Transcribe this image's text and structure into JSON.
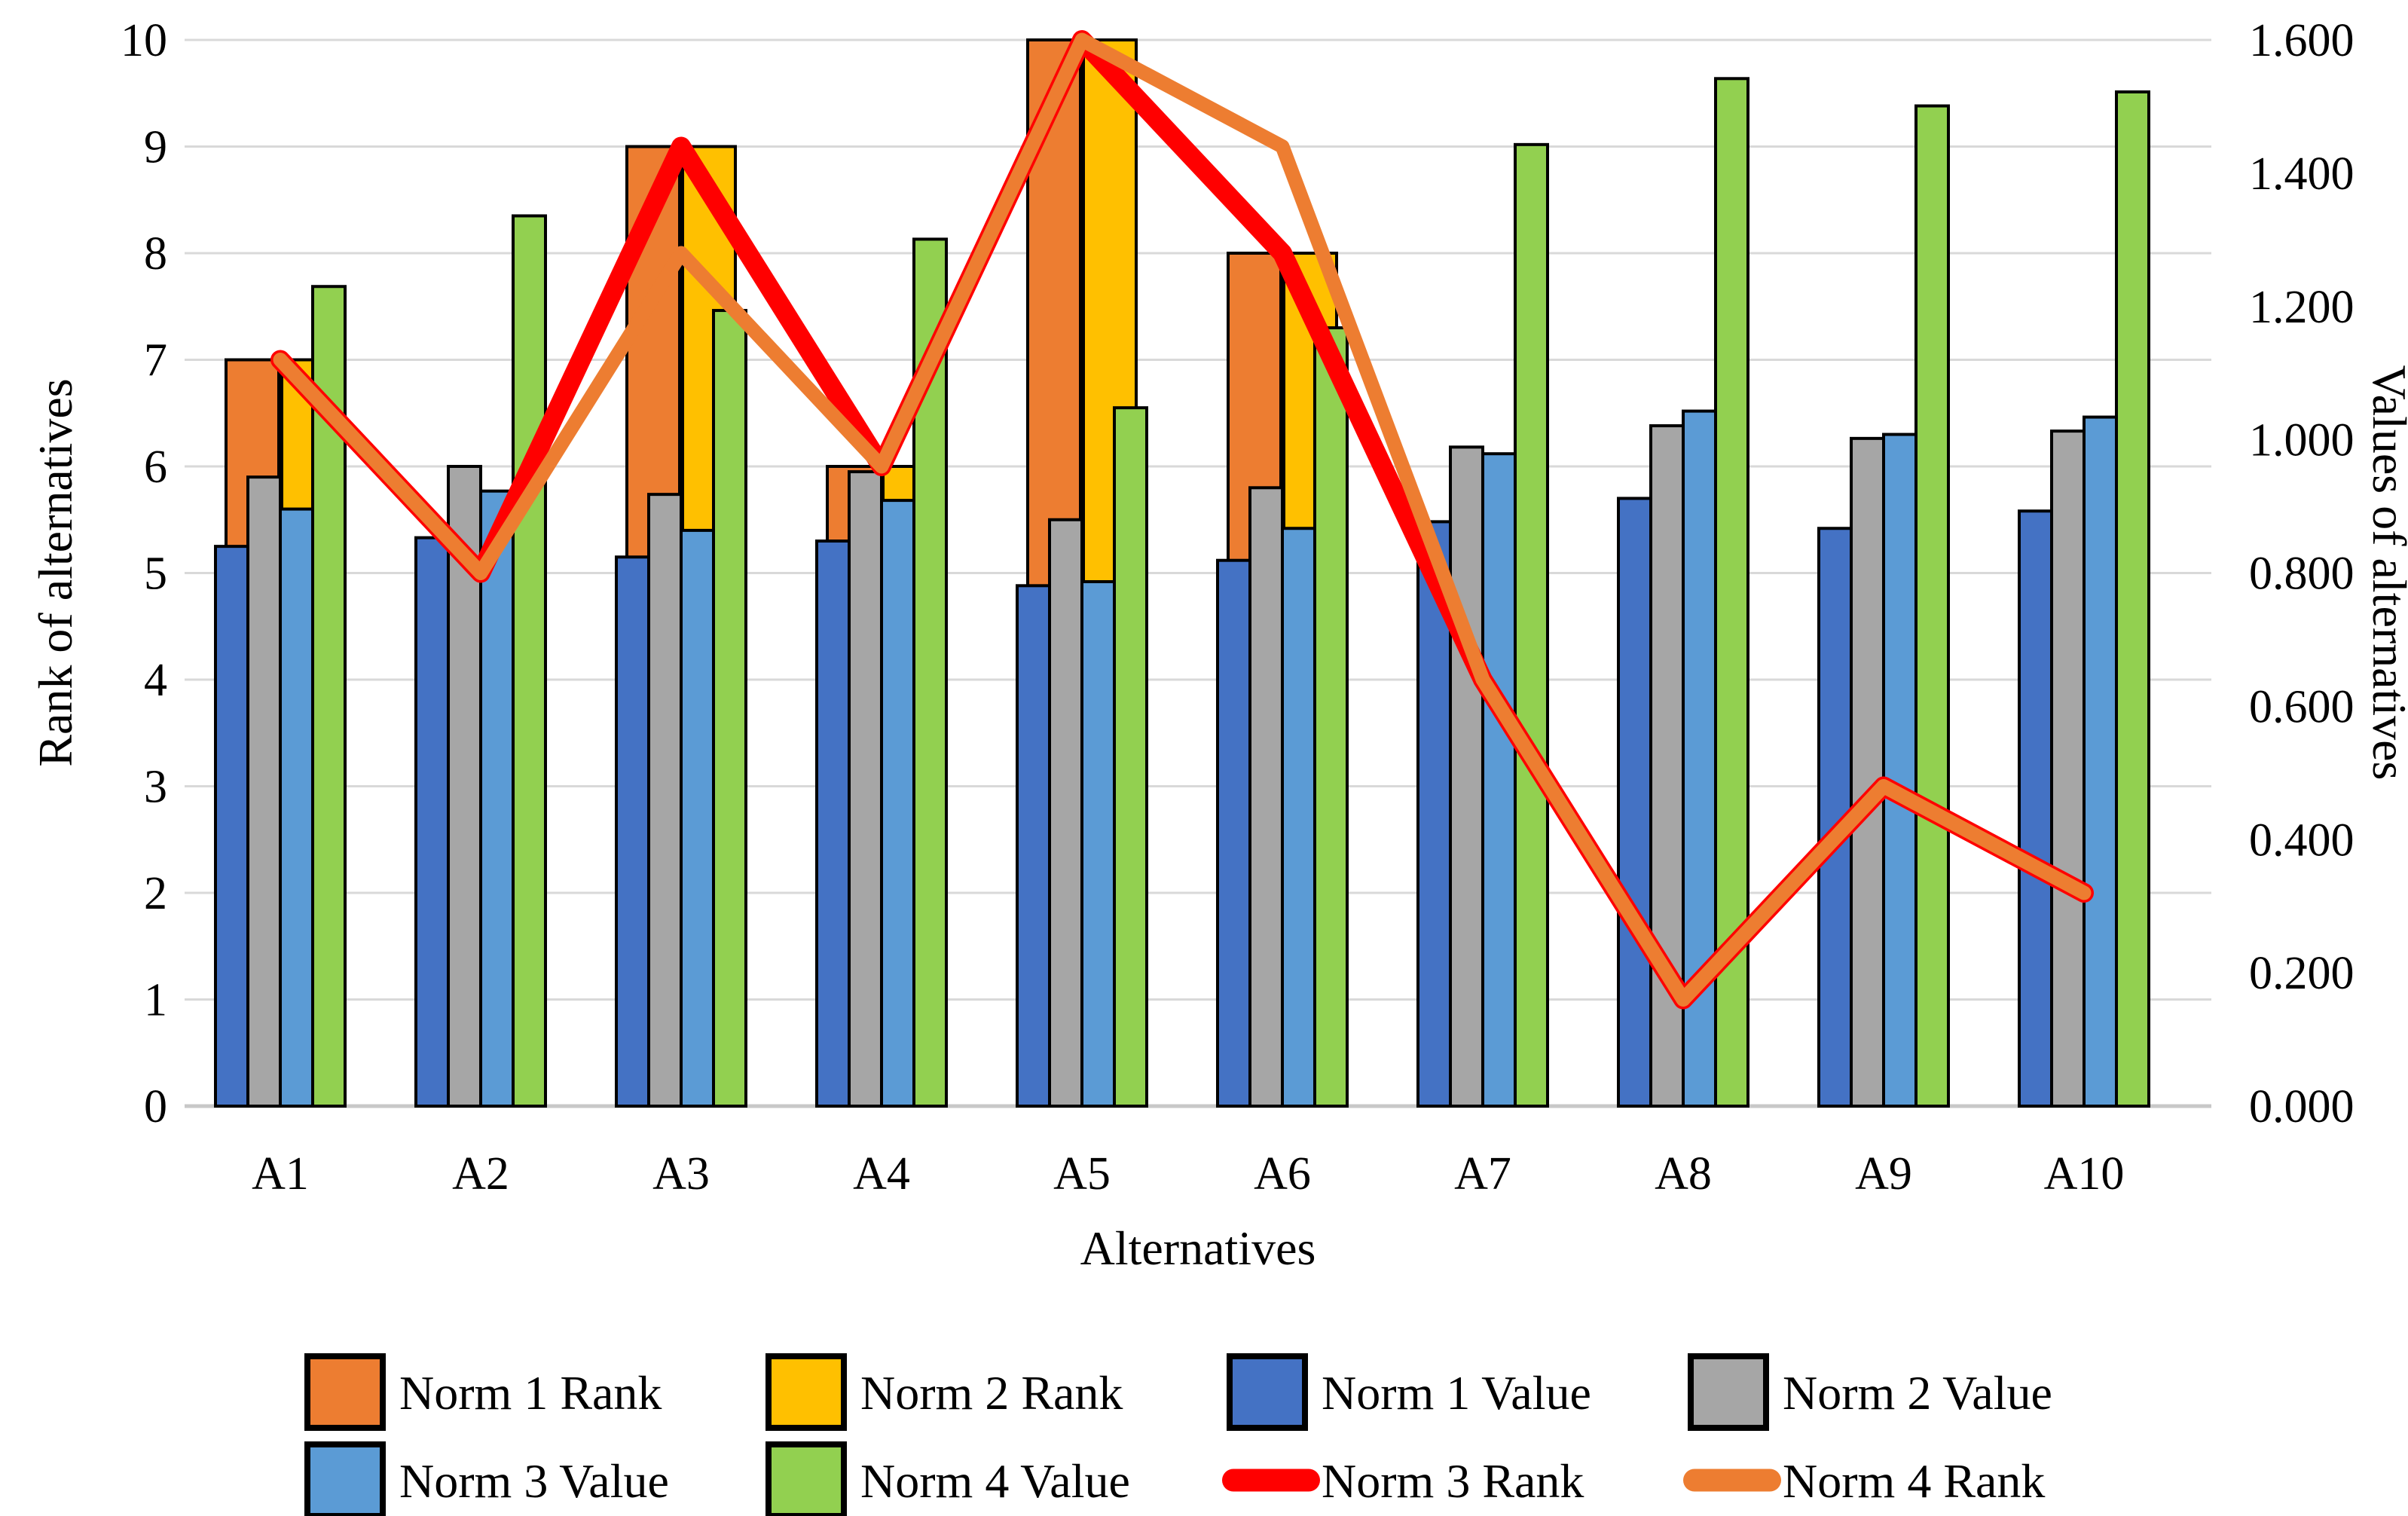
{
  "figure": {
    "left_axis_title": "Rank of alternatives",
    "right_axis_title": "Values of alternatives",
    "x_axis_title": "Alternatives"
  },
  "chart_data": {
    "type": "bar+line combo (dual axis)",
    "categories": [
      "A1",
      "A2",
      "A3",
      "A4",
      "A5",
      "A6",
      "A7",
      "A8",
      "A9",
      "A10"
    ],
    "left_axis": {
      "label": "Rank of alternatives",
      "min": 0,
      "max": 10,
      "step": 1,
      "ticks": [
        "10",
        "9",
        "8",
        "7",
        "6",
        "5",
        "4",
        "3",
        "2",
        "1",
        "0"
      ]
    },
    "right_axis": {
      "label": "Values of alternatives",
      "min": 0.0,
      "max": 1.6,
      "step": 0.2,
      "ticks": [
        "1.600",
        "1.400",
        "1.200",
        "1.000",
        "0.800",
        "0.600",
        "0.400",
        "0.200",
        "0.000"
      ]
    },
    "x_axis": {
      "label": "Alternatives"
    },
    "grid": "horizontal gridlines at every left-axis integer",
    "legend_position": "bottom, two rows",
    "bar_series": [
      {
        "name": "Norm 1 Rank",
        "color": "#ED7D31",
        "axis": "left",
        "style": "wide-back-left",
        "values": [
          7,
          5,
          9,
          6,
          10,
          8,
          4,
          1,
          3,
          2
        ]
      },
      {
        "name": "Norm 2 Rank",
        "color": "#FFC000",
        "axis": "left",
        "style": "wide-back-right",
        "values": [
          7,
          5,
          9,
          6,
          10,
          8,
          4,
          1,
          3,
          2
        ]
      },
      {
        "name": "Norm 1 Value",
        "color": "#4472C4",
        "axis": "right",
        "style": "narrow-slot-0",
        "values": [
          0.84,
          0.853,
          0.824,
          0.848,
          0.781,
          0.819,
          0.877,
          0.912,
          0.867,
          0.893
        ]
      },
      {
        "name": "Norm 2 Value",
        "color": "#A6A6A6",
        "axis": "right",
        "style": "narrow-slot-1",
        "values": [
          0.944,
          0.96,
          0.918,
          0.952,
          0.88,
          0.928,
          0.989,
          1.021,
          1.002,
          1.013
        ]
      },
      {
        "name": "Norm 3 Value",
        "color": "#5B9BD5",
        "axis": "right",
        "style": "narrow-slot-2",
        "values": [
          0.896,
          0.923,
          0.864,
          0.909,
          0.787,
          0.867,
          0.979,
          1.043,
          1.008,
          1.034
        ]
      },
      {
        "name": "Norm 4 Value",
        "color": "#92D050",
        "axis": "right",
        "style": "narrow-slot-3",
        "values": [
          1.23,
          1.336,
          1.194,
          1.301,
          1.048,
          1.168,
          1.443,
          1.542,
          1.501,
          1.522
        ]
      }
    ],
    "line_series": [
      {
        "name": "Norm 3 Rank",
        "color": "#FF0000",
        "axis": "left",
        "values": [
          7,
          5,
          9,
          6,
          10,
          8,
          4,
          1,
          3,
          2
        ]
      },
      {
        "name": "Norm 4 Rank",
        "color": "#ED7D31",
        "axis": "left",
        "values": [
          7,
          5,
          8,
          6,
          10,
          9,
          4,
          1,
          3,
          2
        ]
      }
    ],
    "legend": {
      "rows": [
        [
          {
            "label": "Norm 1 Rank",
            "swatch": "box",
            "color": "#ED7D31"
          },
          {
            "label": "Norm 2 Rank",
            "swatch": "box",
            "color": "#FFC000"
          },
          {
            "label": "Norm 1 Value",
            "swatch": "box",
            "color": "#4472C4"
          },
          {
            "label": "Norm 2 Value",
            "swatch": "box",
            "color": "#A6A6A6"
          }
        ],
        [
          {
            "label": "Norm 3 Value",
            "swatch": "box",
            "color": "#5B9BD5"
          },
          {
            "label": "Norm 4 Value",
            "swatch": "box",
            "color": "#92D050"
          },
          {
            "label": "Norm 3 Rank",
            "swatch": "line",
            "color": "#FF0000"
          },
          {
            "label": "Norm 4 Rank",
            "swatch": "line",
            "color": "#ED7D31"
          }
        ]
      ]
    },
    "colors": {
      "gridline": "#D9D9D9",
      "axis_line": "#C8C8C8",
      "bar_outline": "#000000"
    }
  }
}
